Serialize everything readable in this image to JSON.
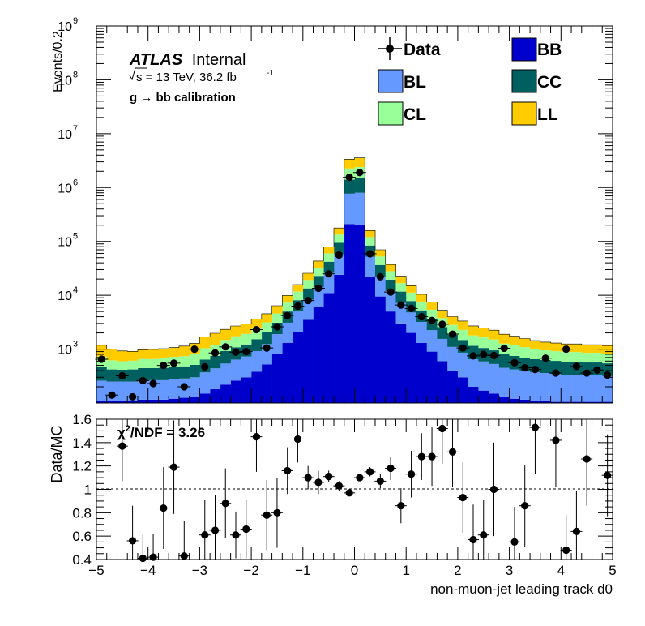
{
  "colors": {
    "BB": "#0000cc",
    "BL": "#6699ff",
    "CC": "#006060",
    "CL": "#99ff99",
    "LL": "#ffcc00",
    "data": "#000000"
  },
  "atlas": {
    "brand": "ATLAS",
    "status": "Internal",
    "sqrt_s": "s = 13 TeV, 36.2 fb",
    "lumi_sup": "-1",
    "calibration": "g  → bb calibration"
  },
  "legend": {
    "data": "Data",
    "BB": "BB",
    "BL": "BL",
    "CC": "CC",
    "CL": "CL",
    "LL": "LL"
  },
  "main": {
    "ylabel": "Events/0.2",
    "yticks": [
      "10",
      "10",
      "10",
      "10",
      "10",
      "10",
      "10"
    ],
    "yexp": [
      "3",
      "4",
      "5",
      "6",
      "7",
      "8",
      "9"
    ]
  },
  "ratio": {
    "ylabel": "Data/MC",
    "chi2_label": "2",
    "chi2_text": "/NDF = 3.26",
    "chi_symbol": "χ",
    "yticks": [
      "0.4",
      "0.6",
      "0.8",
      "1",
      "1.2",
      "1.4",
      "1.6"
    ],
    "xticks": [
      "−5",
      "−4",
      "−3",
      "−2",
      "−1",
      "0",
      "1",
      "2",
      "3",
      "4",
      "5"
    ],
    "xlabel": "non-muon-jet leading track d0"
  },
  "chart_data": [
    {
      "type": "stacked-histogram",
      "yscale": "log",
      "xlim": [
        -5,
        5
      ],
      "ylim": [
        100,
        1000000000
      ],
      "bin_width": 0.2,
      "x": [
        -4.9,
        -4.7,
        -4.5,
        -4.3,
        -4.1,
        -3.9,
        -3.7,
        -3.5,
        -3.3,
        -3.1,
        -2.9,
        -2.7,
        -2.5,
        -2.3,
        -2.1,
        -1.9,
        -1.7,
        -1.5,
        -1.3,
        -1.1,
        -0.9,
        -0.7,
        -0.5,
        -0.3,
        -0.1,
        0.1,
        0.3,
        0.5,
        0.7,
        0.9,
        1.1,
        1.3,
        1.5,
        1.7,
        1.9,
        2.1,
        2.3,
        2.5,
        2.7,
        2.9,
        3.1,
        3.3,
        3.5,
        3.7,
        3.9,
        4.1,
        4.3,
        4.5,
        4.7,
        4.9
      ],
      "series": [
        {
          "name": "BB",
          "values": [
            110,
            110,
            110,
            110,
            115,
            115,
            115,
            120,
            125,
            130,
            150,
            180,
            220,
            260,
            300,
            380,
            520,
            800,
            1300,
            2100,
            3500,
            6000,
            11000,
            24000,
            210000,
            200000,
            22000,
            9500,
            5000,
            3000,
            2000,
            1300,
            900,
            600,
            400,
            300,
            200,
            170,
            150,
            130,
            120,
            115,
            110,
            110,
            105,
            105,
            105,
            105,
            105,
            105
          ]
        },
        {
          "name": "BL",
          "values": [
            150,
            140,
            140,
            140,
            150,
            150,
            150,
            160,
            160,
            170,
            220,
            260,
            320,
            380,
            430,
            540,
            720,
            1100,
            1800,
            2900,
            4800,
            8200,
            15000,
            34000,
            560000,
            600000,
            30000,
            13000,
            7000,
            4200,
            2800,
            1900,
            1350,
            950,
            700,
            560,
            450,
            420,
            380,
            320,
            300,
            280,
            260,
            250,
            240,
            230,
            230,
            220,
            220,
            210
          ]
        },
        {
          "name": "CC",
          "values": [
            200,
            170,
            165,
            170,
            180,
            180,
            185,
            190,
            195,
            210,
            270,
            310,
            380,
            440,
            490,
            610,
            800,
            1200,
            1900,
            3100,
            5100,
            8700,
            16000,
            36000,
            630000,
            680000,
            32000,
            14000,
            7500,
            4500,
            3000,
            2050,
            1450,
            1020,
            760,
            620,
            500,
            460,
            420,
            350,
            330,
            300,
            280,
            270,
            260,
            250,
            250,
            240,
            240,
            230
          ]
        },
        {
          "name": "CL",
          "values": [
            270,
            200,
            180,
            190,
            210,
            210,
            230,
            250,
            260,
            300,
            400,
            460,
            560,
            650,
            700,
            880,
            1100,
            1500,
            2300,
            3600,
            5800,
            9800,
            18000,
            40000,
            860000,
            920000,
            36000,
            16000,
            8400,
            5100,
            3400,
            2400,
            1700,
            1200,
            950,
            800,
            650,
            600,
            560,
            470,
            430,
            390,
            350,
            320,
            310,
            300,
            300,
            290,
            290,
            280
          ]
        },
        {
          "name": "LL",
          "values": [
            450,
            380,
            330,
            300,
            320,
            330,
            340,
            350,
            400,
            470,
            660,
            760,
            850,
            960,
            1000,
            1200,
            1400,
            1800,
            2600,
            4000,
            6400,
            10500,
            19500,
            43000,
            1100000,
            1150000,
            39000,
            17500,
            9300,
            5800,
            3900,
            2800,
            2050,
            1500,
            1200,
            1050,
            900,
            820,
            740,
            620,
            560,
            490,
            440,
            400,
            380,
            360,
            360,
            350,
            350,
            340
          ]
        }
      ],
      "data": {
        "name": "Data",
        "values": [
          650,
          140,
          320,
          130,
          260,
          230,
          500,
          550,
          200,
          1000,
          470,
          850,
          1100,
          880,
          900,
          2300,
          1050,
          2600,
          4200,
          6300,
          8000,
          13500,
          25000,
          56000,
          1550000,
          1900000,
          59000,
          22000,
          11500,
          6600,
          5700,
          4000,
          3400,
          2900,
          1900,
          1050,
          750,
          800,
          760,
          1040,
          560,
          450,
          420,
          680,
          360,
          1000,
          480,
          360,
          410,
          330
        ]
      }
    },
    {
      "type": "scatter",
      "xlim": [
        -5,
        5
      ],
      "ylim": [
        0.4,
        1.6
      ],
      "reference_line": 1.0,
      "points": [
        {
          "x": -4.5,
          "y": 1.37,
          "err": 0.3
        },
        {
          "x": -4.3,
          "y": 0.56,
          "err": 0.3
        },
        {
          "x": -4.1,
          "y": 0.41,
          "err": 0.2
        },
        {
          "x": -3.9,
          "y": 0.42,
          "err": 0.2
        },
        {
          "x": -3.7,
          "y": 0.84,
          "err": 0.35
        },
        {
          "x": -3.5,
          "y": 1.19,
          "err": 0.4
        },
        {
          "x": -3.3,
          "y": 0.43,
          "err": 0.3
        },
        {
          "x": -2.9,
          "y": 0.61,
          "err": 0.3
        },
        {
          "x": -2.7,
          "y": 0.65,
          "err": 0.3
        },
        {
          "x": -2.5,
          "y": 0.88,
          "err": 0.3
        },
        {
          "x": -2.3,
          "y": 0.61,
          "err": 0.2
        },
        {
          "x": -2.1,
          "y": 0.66,
          "err": 0.25
        },
        {
          "x": -1.9,
          "y": 1.45,
          "err": 0.3
        },
        {
          "x": -1.7,
          "y": 0.78,
          "err": 0.3
        },
        {
          "x": -1.5,
          "y": 0.8,
          "err": 0.3
        },
        {
          "x": -1.3,
          "y": 1.16,
          "err": 0.2
        },
        {
          "x": -1.1,
          "y": 1.43,
          "err": 0.2
        },
        {
          "x": -0.9,
          "y": 1.1,
          "err": 0.1
        },
        {
          "x": -0.7,
          "y": 1.06,
          "err": 0.1
        },
        {
          "x": -0.5,
          "y": 1.11,
          "err": 0.05
        },
        {
          "x": -0.3,
          "y": 1.03,
          "err": 0.04
        },
        {
          "x": -0.1,
          "y": 0.97,
          "err": 0.02
        },
        {
          "x": 0.1,
          "y": 1.1,
          "err": 0.02
        },
        {
          "x": 0.3,
          "y": 1.15,
          "err": 0.04
        },
        {
          "x": 0.5,
          "y": 1.07,
          "err": 0.06
        },
        {
          "x": 0.7,
          "y": 1.18,
          "err": 0.1
        },
        {
          "x": 0.9,
          "y": 0.86,
          "err": 0.15
        },
        {
          "x": 1.1,
          "y": 1.13,
          "err": 0.2
        },
        {
          "x": 1.3,
          "y": 1.28,
          "err": 0.2
        },
        {
          "x": 1.5,
          "y": 1.28,
          "err": 0.25
        },
        {
          "x": 1.7,
          "y": 1.52,
          "err": 0.3
        },
        {
          "x": 1.9,
          "y": 1.32,
          "err": 0.3
        },
        {
          "x": 2.1,
          "y": 0.93,
          "err": 0.3
        },
        {
          "x": 2.3,
          "y": 0.57,
          "err": 0.3
        },
        {
          "x": 2.5,
          "y": 0.61,
          "err": 0.3
        },
        {
          "x": 2.7,
          "y": 1.0,
          "err": 0.4
        },
        {
          "x": 3.1,
          "y": 0.55,
          "err": 0.3
        },
        {
          "x": 3.3,
          "y": 0.86,
          "err": 0.35
        },
        {
          "x": 3.5,
          "y": 1.53,
          "err": 0.4
        },
        {
          "x": 3.9,
          "y": 1.42,
          "err": 0.4
        },
        {
          "x": 4.1,
          "y": 0.48,
          "err": 0.3
        },
        {
          "x": 4.3,
          "y": 0.64,
          "err": 0.35
        },
        {
          "x": 4.5,
          "y": 1.26,
          "err": 0.4
        },
        {
          "x": 4.9,
          "y": 1.12,
          "err": 0.35
        }
      ]
    }
  ]
}
